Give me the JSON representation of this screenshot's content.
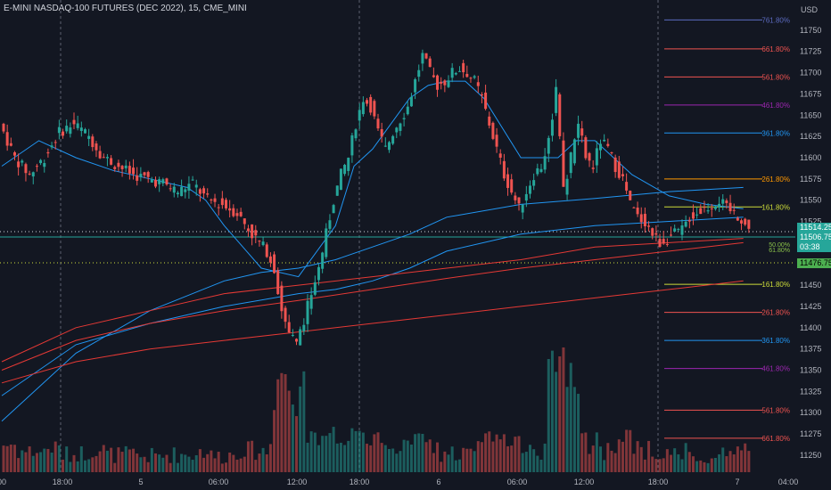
{
  "chart_title": "E-MINI NASDAQ-100 FUTURES (DEC 2022), 15, CME_MINI",
  "currency": "USD",
  "colors": {
    "background": "#131722",
    "up": "#26a69a",
    "down": "#ef5350",
    "ma_blue": "#2196f3",
    "ma_red": "#e53935"
  },
  "chart_data": {
    "type": "candlestick",
    "title": "E-MINI NASDAQ-100 FUTURES (DEC 2022), 15, CME_MINI",
    "ylim": [
      11230,
      11775
    ],
    "y_ticks": [
      11250,
      11275,
      11300,
      11325,
      11350,
      11375,
      11400,
      11425,
      11450,
      11475,
      11500,
      11525,
      11550,
      11575,
      11600,
      11625,
      11650,
      11675,
      11700,
      11725,
      11750
    ],
    "x_tick_labels": [
      "00",
      "18:00",
      "5",
      "06:00",
      "12:00",
      "18:00",
      "6",
      "06:00",
      "12:00",
      "18:00",
      "7",
      "04:00"
    ],
    "price_path": [
      [
        0,
        11640
      ],
      [
        4,
        11600
      ],
      [
        8,
        11580
      ],
      [
        12,
        11600
      ],
      [
        16,
        11630
      ],
      [
        20,
        11640
      ],
      [
        24,
        11625
      ],
      [
        28,
        11600
      ],
      [
        32,
        11590
      ],
      [
        36,
        11580
      ],
      [
        40,
        11575
      ],
      [
        44,
        11570
      ],
      [
        48,
        11560
      ],
      [
        52,
        11570
      ],
      [
        56,
        11550
      ],
      [
        60,
        11545
      ],
      [
        64,
        11535
      ],
      [
        68,
        11510
      ],
      [
        72,
        11490
      ],
      [
        74,
        11470
      ],
      [
        76,
        11420
      ],
      [
        78,
        11395
      ],
      [
        80,
        11380
      ],
      [
        82,
        11410
      ],
      [
        84,
        11440
      ],
      [
        86,
        11470
      ],
      [
        88,
        11510
      ],
      [
        90,
        11550
      ],
      [
        92,
        11580
      ],
      [
        94,
        11600
      ],
      [
        96,
        11640
      ],
      [
        98,
        11670
      ],
      [
        100,
        11660
      ],
      [
        102,
        11630
      ],
      [
        104,
        11610
      ],
      [
        106,
        11630
      ],
      [
        108,
        11645
      ],
      [
        110,
        11660
      ],
      [
        112,
        11690
      ],
      [
        114,
        11720
      ],
      [
        116,
        11700
      ],
      [
        118,
        11685
      ],
      [
        120,
        11690
      ],
      [
        122,
        11700
      ],
      [
        124,
        11705
      ],
      [
        126,
        11700
      ],
      [
        128,
        11690
      ],
      [
        130,
        11670
      ],
      [
        132,
        11640
      ],
      [
        134,
        11610
      ],
      [
        136,
        11580
      ],
      [
        138,
        11560
      ],
      [
        140,
        11540
      ],
      [
        142,
        11560
      ],
      [
        144,
        11580
      ],
      [
        146,
        11590
      ],
      [
        148,
        11620
      ],
      [
        150,
        11680
      ],
      [
        152,
        11560
      ],
      [
        154,
        11600
      ],
      [
        156,
        11640
      ],
      [
        158,
        11600
      ],
      [
        160,
        11590
      ],
      [
        162,
        11620
      ],
      [
        164,
        11610
      ],
      [
        166,
        11590
      ],
      [
        168,
        11575
      ],
      [
        170,
        11545
      ],
      [
        172,
        11530
      ],
      [
        174,
        11525
      ],
      [
        176,
        11510
      ],
      [
        178,
        11500
      ],
      [
        180,
        11505
      ],
      [
        182,
        11510
      ],
      [
        184,
        11515
      ],
      [
        186,
        11530
      ],
      [
        188,
        11535
      ],
      [
        190,
        11540
      ],
      [
        192,
        11545
      ],
      [
        194,
        11550
      ],
      [
        196,
        11540
      ],
      [
        198,
        11535
      ],
      [
        200,
        11528
      ],
      [
        202,
        11514
      ]
    ],
    "moving_averages": [
      {
        "color": "#2196f3",
        "points": [
          [
            0,
            11590
          ],
          [
            10,
            11620
          ],
          [
            20,
            11600
          ],
          [
            30,
            11585
          ],
          [
            40,
            11575
          ],
          [
            50,
            11565
          ],
          [
            55,
            11550
          ],
          [
            60,
            11520
          ],
          [
            66,
            11490
          ],
          [
            70,
            11470
          ],
          [
            80,
            11460
          ],
          [
            90,
            11520
          ],
          [
            95,
            11590
          ],
          [
            100,
            11610
          ],
          [
            105,
            11640
          ],
          [
            110,
            11670
          ],
          [
            115,
            11685
          ],
          [
            120,
            11690
          ],
          [
            125,
            11690
          ],
          [
            130,
            11670
          ],
          [
            140,
            11600
          ],
          [
            150,
            11600
          ],
          [
            155,
            11620
          ],
          [
            160,
            11620
          ],
          [
            165,
            11600
          ],
          [
            170,
            11580
          ],
          [
            180,
            11555
          ],
          [
            190,
            11545
          ],
          [
            200,
            11540
          ]
        ]
      },
      {
        "color": "#2196f3",
        "points": [
          [
            0,
            11290
          ],
          [
            20,
            11370
          ],
          [
            40,
            11420
          ],
          [
            60,
            11455
          ],
          [
            70,
            11465
          ],
          [
            80,
            11470
          ],
          [
            90,
            11480
          ],
          [
            100,
            11495
          ],
          [
            110,
            11510
          ],
          [
            120,
            11530
          ],
          [
            140,
            11545
          ],
          [
            160,
            11552
          ],
          [
            180,
            11560
          ],
          [
            200,
            11565
          ]
        ]
      },
      {
        "color": "#2196f3",
        "points": [
          [
            0,
            11320
          ],
          [
            20,
            11380
          ],
          [
            40,
            11405
          ],
          [
            60,
            11425
          ],
          [
            80,
            11440
          ],
          [
            90,
            11445
          ],
          [
            100,
            11455
          ],
          [
            110,
            11470
          ],
          [
            120,
            11490
          ],
          [
            140,
            11510
          ],
          [
            160,
            11520
          ],
          [
            180,
            11525
          ],
          [
            200,
            11530
          ]
        ]
      },
      {
        "color": "#e53935",
        "points": [
          [
            0,
            11360
          ],
          [
            20,
            11400
          ],
          [
            40,
            11420
          ],
          [
            60,
            11440
          ],
          [
            80,
            11450
          ],
          [
            100,
            11460
          ],
          [
            120,
            11470
          ],
          [
            140,
            11480
          ],
          [
            160,
            11495
          ],
          [
            180,
            11500
          ],
          [
            200,
            11505
          ]
        ]
      },
      {
        "color": "#e53935",
        "points": [
          [
            0,
            11350
          ],
          [
            20,
            11385
          ],
          [
            40,
            11405
          ],
          [
            60,
            11420
          ],
          [
            80,
            11432
          ],
          [
            100,
            11445
          ],
          [
            120,
            11458
          ],
          [
            140,
            11470
          ],
          [
            160,
            11480
          ],
          [
            180,
            11490
          ],
          [
            200,
            11500
          ]
        ]
      },
      {
        "color": "#e53935",
        "points": [
          [
            0,
            11335
          ],
          [
            20,
            11360
          ],
          [
            40,
            11375
          ],
          [
            60,
            11385
          ],
          [
            80,
            11395
          ],
          [
            100,
            11405
          ],
          [
            120,
            11415
          ],
          [
            140,
            11425
          ],
          [
            160,
            11435
          ],
          [
            180,
            11445
          ],
          [
            200,
            11455
          ]
        ]
      }
    ],
    "fib_levels_upper": [
      {
        "label": "761.80%",
        "value": 11762,
        "color": "#5c6bc0"
      },
      {
        "label": "661.80%",
        "value": 11728,
        "color": "#ef5350"
      },
      {
        "label": "561.80%",
        "value": 11695,
        "color": "#ef5350"
      },
      {
        "label": "461.80%",
        "value": 11662,
        "color": "#9c27b0"
      },
      {
        "label": "361.80%",
        "value": 11629,
        "color": "#2196f3"
      },
      {
        "label": "261.80%",
        "value": 11575,
        "color": "#ff9800"
      },
      {
        "label": "161.80%",
        "value": 11542,
        "color": "#cddc39"
      }
    ],
    "fib_levels_lower": [
      {
        "label": "161.80%",
        "value": 11451,
        "color": "#cddc39"
      },
      {
        "label": "261.80%",
        "value": 11418,
        "color": "#ef5350"
      },
      {
        "label": "361.80%",
        "value": 11385,
        "color": "#2196f3"
      },
      {
        "label": "461.80%",
        "value": 11352,
        "color": "#9c27b0"
      },
      {
        "label": "561.80%",
        "value": 11303,
        "color": "#ef5350"
      },
      {
        "label": "661.80%",
        "value": 11270,
        "color": "#ef5350"
      }
    ],
    "fib_small_labels": [
      "50.00%",
      "61.80%"
    ],
    "price_labels": {
      "upper_dotted": "11514.25",
      "current": "11506.75",
      "countdown": "03:38",
      "lower_dotted": "11476.75"
    }
  }
}
